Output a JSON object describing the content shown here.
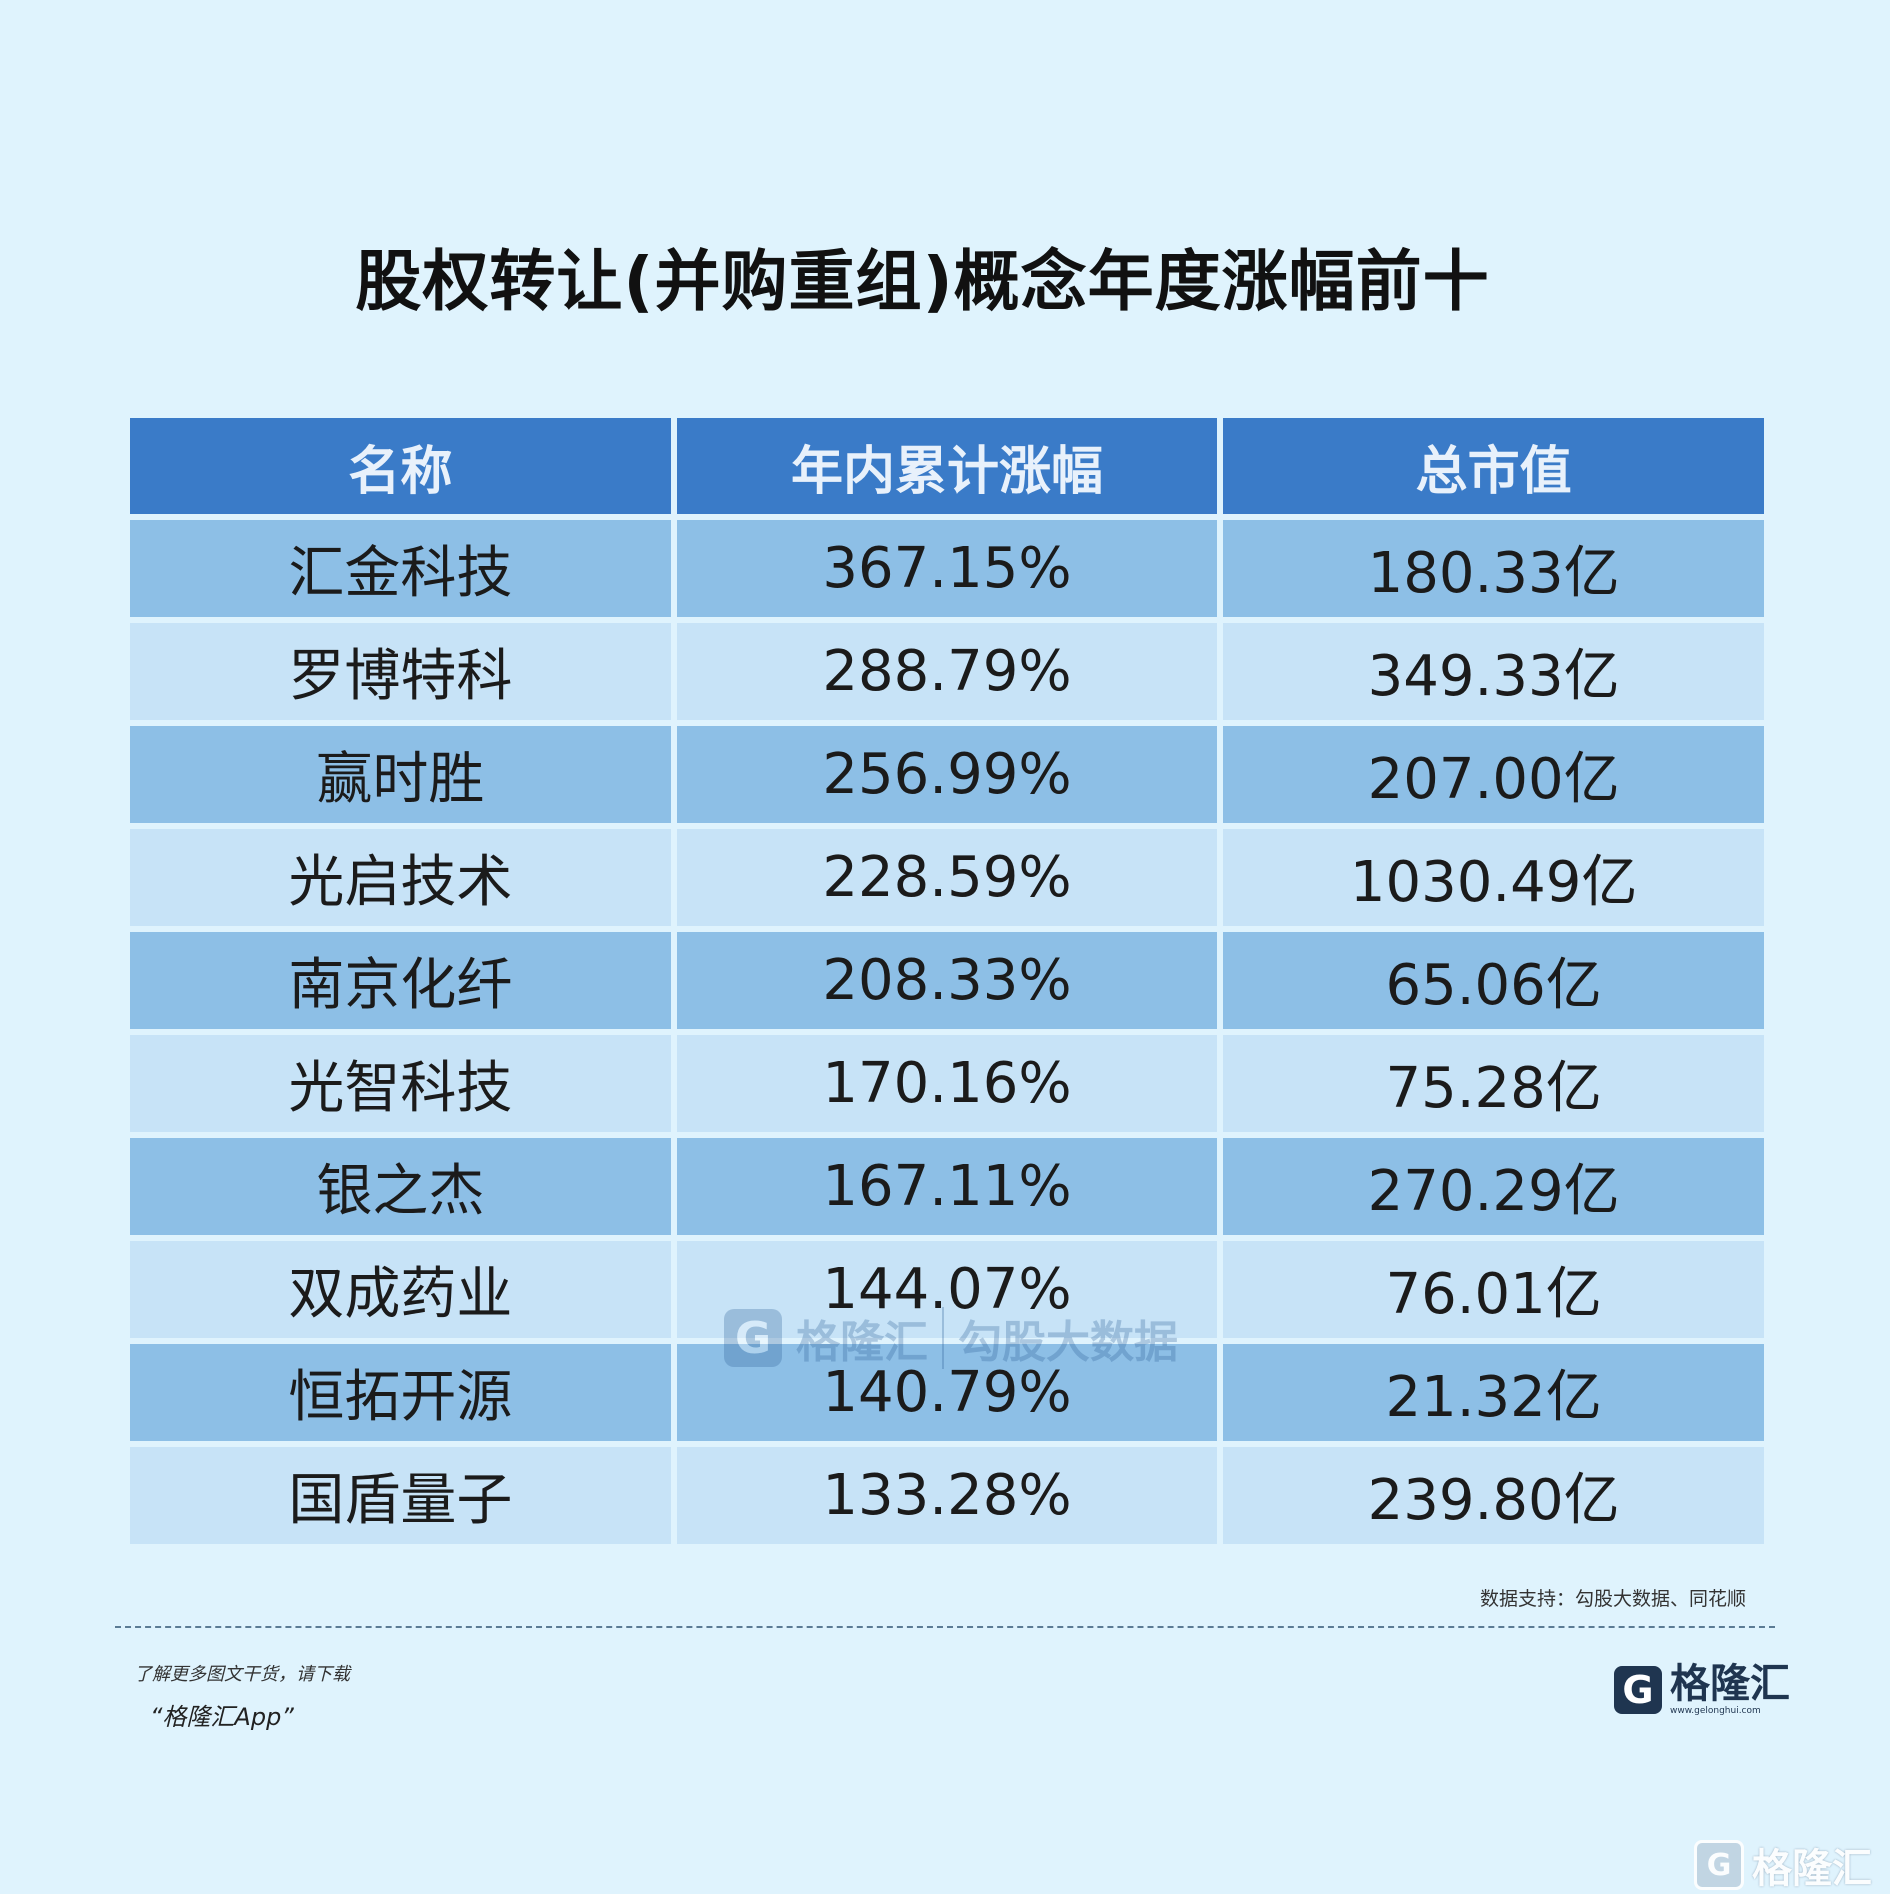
{
  "title": "股权转让(并购重组)概念年度涨幅前十",
  "chart_data": {
    "type": "table",
    "columns": [
      "名称",
      "年内累计涨幅",
      "总市值"
    ],
    "rows": [
      [
        "汇金科技",
        "367.15%",
        "180.33亿"
      ],
      [
        "罗博特科",
        "288.79%",
        "349.33亿"
      ],
      [
        "赢时胜",
        "256.99%",
        "207.00亿"
      ],
      [
        "光启技术",
        "228.59%",
        "1030.49亿"
      ],
      [
        "南京化纤",
        "208.33%",
        "65.06亿"
      ],
      [
        "光智科技",
        "170.16%",
        "75.28亿"
      ],
      [
        "银之杰",
        "167.11%",
        "270.29亿"
      ],
      [
        "双成药业",
        "144.07%",
        "76.01亿"
      ],
      [
        "恒拓开源",
        "140.79%",
        "21.32亿"
      ],
      [
        "国盾量子",
        "133.28%",
        "239.80亿"
      ]
    ]
  },
  "colors": {
    "header_bg": "#3a7bc8",
    "row_dark": "#8dbfe6",
    "row_light": "#c7e3f7",
    "page_bg": "#dff3fd"
  },
  "source": "数据支持：勾股大数据、同花顺",
  "promo": {
    "line1": "了解更多图文干货，请下载",
    "line2": "“格隆汇App”"
  },
  "logo": {
    "icon": "gelonghui-g-icon",
    "brand": "格隆汇",
    "url": "www.gelonghui.com"
  },
  "watermark": {
    "icon": "gelonghui-g-icon",
    "brand": "格隆汇",
    "brand_url": "www.gelonghui.com",
    "partner": "勾股大数据",
    "partner_url": "www.gogudata.com"
  },
  "corner_logo": {
    "icon": "gelonghui-g-icon",
    "brand": "格隆汇"
  }
}
